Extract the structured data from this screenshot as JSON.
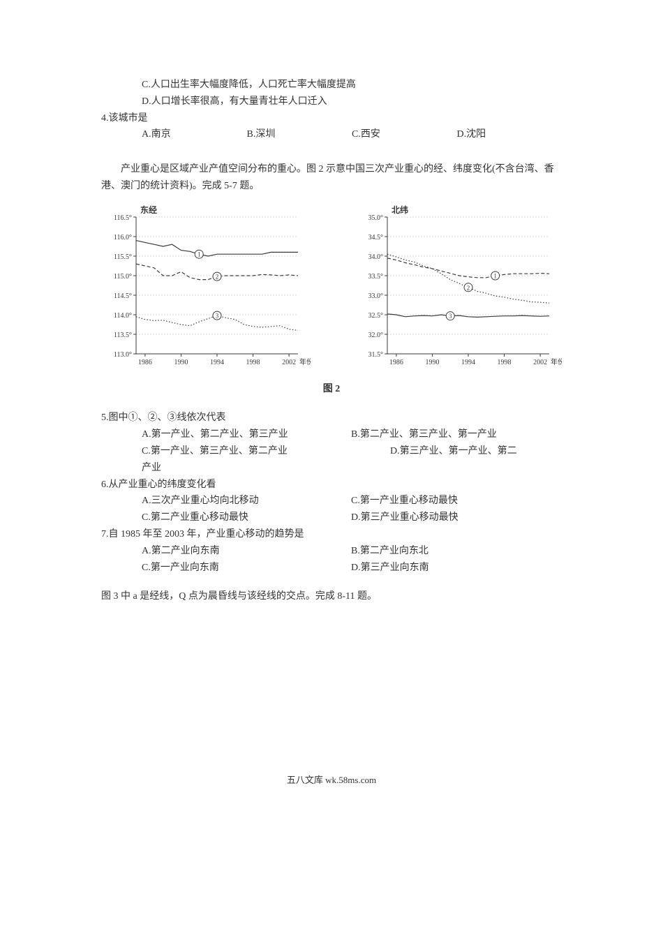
{
  "preamble": {
    "opt_c": "C.人口出生率大幅度降低，人口死亡率大幅度提高",
    "opt_d": "D.人口增长率很高，有大量青壮年人口迁入"
  },
  "q4": {
    "stem": "4.该城市是",
    "a": "A.南京",
    "b": "B.深圳",
    "c": "C.西安",
    "d": "D.沈阳"
  },
  "passage2": "产业重心是区域产业产值空间分布的重心。图 2 示意中国三次产业重心的经、纬度变化(不含台湾、香港、澳门的统计资料)。完成 5-7 题。",
  "figure2_caption": "图 2",
  "chart_left": {
    "type": "line",
    "y_title": "东经",
    "x_ticks": [
      "1986",
      "1990",
      "1994",
      "1998",
      "2002"
    ],
    "x_label_suffix": "年份",
    "y_ticks": [
      "113.0°",
      "113.5°",
      "114.0°",
      "114.5°",
      "115.0°",
      "115.5°",
      "116.0°",
      "116.5°"
    ],
    "ylim": [
      113.0,
      116.5
    ],
    "background_color": "#ffffff",
    "axis_color": "#3a3a3a",
    "grid_color": "#b8b8b8",
    "series": [
      {
        "id": 1,
        "label": "①",
        "style": "solid",
        "xy": [
          [
            1985,
            115.9
          ],
          [
            1986,
            115.85
          ],
          [
            1987,
            115.8
          ],
          [
            1988,
            115.75
          ],
          [
            1989,
            115.8
          ],
          [
            1990,
            115.65
          ],
          [
            1991,
            115.62
          ],
          [
            1992,
            115.55
          ],
          [
            1993,
            115.5
          ],
          [
            1994,
            115.55
          ],
          [
            1995,
            115.55
          ],
          [
            1996,
            115.55
          ],
          [
            1997,
            115.55
          ],
          [
            1998,
            115.55
          ],
          [
            1999,
            115.55
          ],
          [
            2000,
            115.6
          ],
          [
            2001,
            115.6
          ],
          [
            2002,
            115.6
          ],
          [
            2003,
            115.6
          ]
        ]
      },
      {
        "id": 2,
        "label": "②",
        "style": "dash",
        "xy": [
          [
            1985,
            115.3
          ],
          [
            1986,
            115.25
          ],
          [
            1987,
            115.2
          ],
          [
            1988,
            115.0
          ],
          [
            1989,
            115.0
          ],
          [
            1990,
            115.1
          ],
          [
            1991,
            114.95
          ],
          [
            1992,
            114.9
          ],
          [
            1993,
            114.9
          ],
          [
            1994,
            114.98
          ],
          [
            1995,
            115.0
          ],
          [
            1996,
            115.0
          ],
          [
            1997,
            115.0
          ],
          [
            1998,
            115.0
          ],
          [
            1999,
            115.03
          ],
          [
            2000,
            115.02
          ],
          [
            2001,
            115.0
          ],
          [
            2002,
            115.02
          ],
          [
            2003,
            115.0
          ]
        ]
      },
      {
        "id": 3,
        "label": "③",
        "style": "dot",
        "xy": [
          [
            1985,
            113.95
          ],
          [
            1986,
            113.88
          ],
          [
            1987,
            113.85
          ],
          [
            1988,
            113.86
          ],
          [
            1989,
            113.8
          ],
          [
            1990,
            113.75
          ],
          [
            1991,
            113.72
          ],
          [
            1992,
            113.82
          ],
          [
            1993,
            113.9
          ],
          [
            1994,
            113.98
          ],
          [
            1995,
            113.92
          ],
          [
            1996,
            113.88
          ],
          [
            1997,
            113.75
          ],
          [
            1998,
            113.7
          ],
          [
            1999,
            113.68
          ],
          [
            2000,
            113.7
          ],
          [
            2001,
            113.72
          ],
          [
            2002,
            113.63
          ],
          [
            2003,
            113.6
          ]
        ]
      }
    ],
    "label_points": [
      {
        "series": 1,
        "x": 1992,
        "y": 115.55
      },
      {
        "series": 2,
        "x": 1994,
        "y": 114.98
      },
      {
        "series": 3,
        "x": 1994,
        "y": 113.98
      }
    ]
  },
  "chart_right": {
    "type": "line",
    "y_title": "北纬",
    "x_ticks": [
      "1986",
      "1990",
      "1994",
      "1998",
      "2002"
    ],
    "x_label_suffix": "年份",
    "y_ticks": [
      "31.5°",
      "32.0°",
      "32.5°",
      "33.0°",
      "33.5°",
      "34.0°",
      "34.5°",
      "35.0°"
    ],
    "ylim": [
      31.5,
      35.0
    ],
    "background_color": "#ffffff",
    "axis_color": "#3a3a3a",
    "grid_color": "#b8b8b8",
    "series": [
      {
        "id": 1,
        "label": "①",
        "style": "dash",
        "xy": [
          [
            1985,
            33.95
          ],
          [
            1986,
            33.9
          ],
          [
            1987,
            33.83
          ],
          [
            1988,
            33.78
          ],
          [
            1989,
            33.72
          ],
          [
            1990,
            33.68
          ],
          [
            1991,
            33.62
          ],
          [
            1992,
            33.56
          ],
          [
            1993,
            33.5
          ],
          [
            1994,
            33.47
          ],
          [
            1995,
            33.45
          ],
          [
            1996,
            33.45
          ],
          [
            1997,
            33.5
          ],
          [
            1998,
            33.53
          ],
          [
            1999,
            33.55
          ],
          [
            2000,
            33.55
          ],
          [
            2001,
            33.55
          ],
          [
            2002,
            33.56
          ],
          [
            2003,
            33.55
          ]
        ]
      },
      {
        "id": 2,
        "label": "②",
        "style": "dot",
        "xy": [
          [
            1985,
            34.05
          ],
          [
            1986,
            33.98
          ],
          [
            1987,
            33.9
          ],
          [
            1988,
            33.85
          ],
          [
            1989,
            33.75
          ],
          [
            1990,
            33.68
          ],
          [
            1991,
            33.55
          ],
          [
            1992,
            33.4
          ],
          [
            1993,
            33.3
          ],
          [
            1994,
            33.2
          ],
          [
            1995,
            33.1
          ],
          [
            1996,
            33.05
          ],
          [
            1997,
            32.98
          ],
          [
            1998,
            32.95
          ],
          [
            1999,
            32.9
          ],
          [
            2000,
            32.87
          ],
          [
            2001,
            32.83
          ],
          [
            2002,
            32.82
          ],
          [
            2003,
            32.8
          ]
        ]
      },
      {
        "id": 3,
        "label": "③",
        "style": "solid",
        "xy": [
          [
            1985,
            32.52
          ],
          [
            1986,
            32.5
          ],
          [
            1987,
            32.45
          ],
          [
            1988,
            32.47
          ],
          [
            1989,
            32.48
          ],
          [
            1990,
            32.47
          ],
          [
            1991,
            32.5
          ],
          [
            1992,
            32.47
          ],
          [
            1993,
            32.48
          ],
          [
            1994,
            32.45
          ],
          [
            1995,
            32.44
          ],
          [
            1996,
            32.45
          ],
          [
            1997,
            32.46
          ],
          [
            1998,
            32.47
          ],
          [
            1999,
            32.47
          ],
          [
            2000,
            32.48
          ],
          [
            2001,
            32.47
          ],
          [
            2002,
            32.46
          ],
          [
            2003,
            32.47
          ]
        ]
      }
    ],
    "label_points": [
      {
        "series": 1,
        "x": 1997,
        "y": 33.5
      },
      {
        "series": 2,
        "x": 1994,
        "y": 33.2
      },
      {
        "series": 3,
        "x": 1992,
        "y": 32.47
      }
    ]
  },
  "q5": {
    "stem": "5.图中①、②、③线依次代表",
    "a": "A.第一产业、第二产业、第三产业",
    "b": "B.第二产业、第三产业、第一产业",
    "c": "C.第一产业、第三产业、第二产业",
    "d": "D.第三产业、第一产业、第二",
    "d_tail": "产业"
  },
  "q6": {
    "stem": "6.从产业重心的纬度变化看",
    "a": "A.三次产业重心均向北移动",
    "b": "C.第一产业重心移动最快",
    "c": "C.第二产业重心移动最快",
    "d": "D.第三产业重心移动最快"
  },
  "q7": {
    "stem": "7.自 1985 年至 2003 年，产业重心移动的趋势是",
    "a": "A.第二产业向东南",
    "b": "B.第二产业向东北",
    "c": "C.第一产业向东南",
    "d": "D.第三产业向东南"
  },
  "passage3": "图 3 中 a 是经线，Q 点为晨昏线与该经线的交点。完成 8-11 题。",
  "footer": "五八文库 wk.58ms.com"
}
